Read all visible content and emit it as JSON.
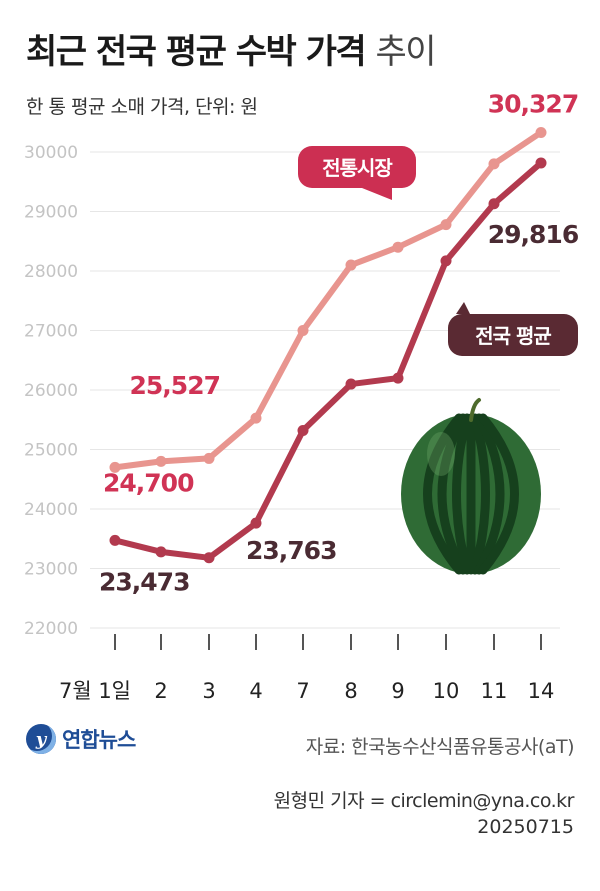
{
  "title": {
    "bold": "최근 전국 평균 수박 가격",
    "light": "추이"
  },
  "subtitle": "한 통 평균 소매 가격, 단위: 원",
  "chart_data": {
    "type": "line",
    "categories": [
      "7월 1일",
      "2",
      "3",
      "4",
      "7",
      "8",
      "9",
      "10",
      "11",
      "14"
    ],
    "ylim": [
      22000,
      30000
    ],
    "yticks": [
      22000,
      23000,
      24000,
      25000,
      26000,
      27000,
      28000,
      29000,
      30000
    ],
    "grid": true,
    "series": [
      {
        "name": "전통시장",
        "color": "#e8958f",
        "values": [
          24700,
          24800,
          24850,
          25527,
          27000,
          28100,
          28400,
          28780,
          29800,
          30327
        ]
      },
      {
        "name": "전국 평균",
        "color": "#b23a4e",
        "values": [
          23473,
          23280,
          23180,
          23763,
          25320,
          26100,
          26200,
          28170,
          29130,
          29816
        ]
      }
    ],
    "annotations": [
      {
        "series": 0,
        "index": 0,
        "label": "24,700",
        "color": "#d03355"
      },
      {
        "series": 0,
        "index": 3,
        "label": "25,527",
        "color": "#d03355"
      },
      {
        "series": 0,
        "index": 9,
        "label": "30,327",
        "color": "#d03355"
      },
      {
        "series": 1,
        "index": 0,
        "label": "23,473",
        "color": "#4a2b33"
      },
      {
        "series": 1,
        "index": 3,
        "label": "23,763",
        "color": "#4a2b33"
      },
      {
        "series": 1,
        "index": 9,
        "label": "29,816",
        "color": "#4a2b33"
      }
    ],
    "callouts": [
      {
        "series": 0,
        "label": "전통시장",
        "bg": "#cc2f52"
      },
      {
        "series": 1,
        "label": "전국 평균",
        "bg": "#5a2a33"
      }
    ]
  },
  "illustration": {
    "icon": "watermelon-icon",
    "rind": "#2f6b35",
    "stripe": "#16401d"
  },
  "footer": {
    "logo": "연합뉴스",
    "source": "자료: 한국농수산식품유통공사(aT)",
    "credit": "원형민 기자 = circlemin@yna.co.kr",
    "date": "20250715"
  }
}
